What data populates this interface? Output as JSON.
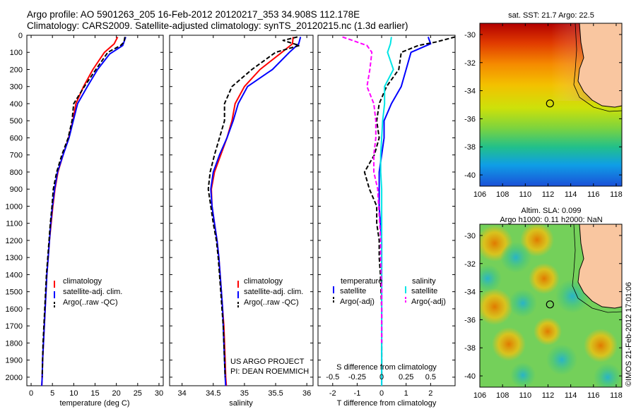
{
  "header": {
    "line1": "Argo profile: AO 5901263_205 16-Feb-2012 20120217_353 34.908S 112.178E",
    "line2": "Climatology: CARS2009. Satellite-adjusted climatology: synTS_20120215.nc (1.3d earlier)"
  },
  "colors": {
    "climatology": "#ff0000",
    "satellite": "#0000ff",
    "argo": "#000000",
    "sat_salinity": "#00e5e5",
    "argo_salinity_adj": "#ff00ff",
    "land": "#f9c6a0"
  },
  "panels": {
    "temperature": {
      "xlabel": "temperature (deg C)",
      "legend": [
        "climatology",
        "satellite-adj. clim.",
        "Argo(..raw -QC)"
      ]
    },
    "salinity": {
      "xlabel": "salinity",
      "legend": [
        "climatology",
        "satellite-adj. clim.",
        "Argo(..raw -QC)"
      ],
      "credit_line1": "US ARGO PROJECT",
      "credit_line2": "PI: DEAN ROEMMICH"
    },
    "difference": {
      "legend_temp_title": "temperature",
      "legend_sal_title": "salinity",
      "legend_temp": [
        "satellite",
        "Argo(-adj)"
      ],
      "legend_sal": [
        "satellite",
        "Argo(-adj)"
      ],
      "xlabel_top": "S difference from climatology",
      "xlabel_bottom": "T difference from climatology"
    }
  },
  "maps": {
    "sst_title": "sat. SST: 21.7 Argo: 22.5",
    "sla_title1": "Altim. SLA: 0.099",
    "sla_title2": "Argo h1000: 0.11 h2000: NaN",
    "stamp": "©IMOS 21-Feb-2012 17:01:06",
    "lon_ticks": [
      106,
      108,
      110,
      112,
      114,
      116,
      118
    ],
    "lat_ticks": [
      -30,
      -32,
      -34,
      -36,
      -38,
      -40
    ],
    "lon_range": [
      106,
      118.5
    ],
    "lat_range": [
      -29.2,
      -40.8
    ],
    "argo_position": {
      "lon": 112.178,
      "lat": -34.908
    }
  },
  "chart_data": [
    {
      "type": "line",
      "id": "temperature",
      "xlabel": "temperature (deg C)",
      "ylabel": "",
      "xlim": [
        -1,
        31
      ],
      "ylim": [
        2050,
        0
      ],
      "xticks": [
        0,
        5,
        10,
        15,
        20,
        25,
        30
      ],
      "yticks": [
        0,
        100,
        200,
        300,
        400,
        500,
        600,
        700,
        800,
        900,
        1000,
        1100,
        1200,
        1300,
        1400,
        1500,
        1600,
        1700,
        1800,
        1900,
        2000
      ],
      "series": [
        {
          "name": "climatology",
          "color": "#ff0000",
          "dash": "solid",
          "points": [
            [
              20.3,
              10
            ],
            [
              19.5,
              50
            ],
            [
              17.2,
              100
            ],
            [
              14.5,
              200
            ],
            [
              12.3,
              300
            ],
            [
              10.5,
              400
            ],
            [
              9.8,
              500
            ],
            [
              8.8,
              600
            ],
            [
              7.5,
              700
            ],
            [
              6.3,
              800
            ],
            [
              5.6,
              900
            ],
            [
              5.1,
              1000
            ],
            [
              4.7,
              1100
            ],
            [
              4.3,
              1200
            ],
            [
              4.0,
              1300
            ],
            [
              3.7,
              1400
            ],
            [
              3.5,
              1500
            ],
            [
              3.3,
              1600
            ],
            [
              3.1,
              1700
            ],
            [
              2.9,
              1800
            ],
            [
              2.7,
              1900
            ],
            [
              2.6,
              2000
            ],
            [
              2.5,
              2050
            ]
          ]
        },
        {
          "name": "satellite-adj. clim.",
          "color": "#0000ff",
          "dash": "solid",
          "points": [
            [
              22.2,
              10
            ],
            [
              21.5,
              60
            ],
            [
              18.4,
              110
            ],
            [
              15.6,
              200
            ],
            [
              13.2,
              300
            ],
            [
              10.9,
              400
            ],
            [
              9.9,
              500
            ],
            [
              8.9,
              600
            ],
            [
              7.5,
              700
            ],
            [
              6.2,
              800
            ],
            [
              5.5,
              900
            ],
            [
              5.0,
              1000
            ],
            [
              4.6,
              1100
            ],
            [
              4.3,
              1200
            ],
            [
              4.0,
              1300
            ],
            [
              3.7,
              1400
            ],
            [
              3.5,
              1500
            ],
            [
              3.3,
              1600
            ],
            [
              3.1,
              1700
            ],
            [
              2.9,
              1800
            ],
            [
              2.7,
              1900
            ],
            [
              2.6,
              2000
            ],
            [
              2.5,
              2050
            ]
          ]
        },
        {
          "name": "Argo(..raw -QC)",
          "color": "#000000",
          "dash": "dashed",
          "points": [
            [
              22.0,
              10
            ],
            [
              21.8,
              40
            ],
            [
              21.0,
              60
            ],
            [
              18.0,
              100
            ],
            [
              15.2,
              200
            ],
            [
              12.5,
              300
            ],
            [
              10.0,
              400
            ],
            [
              9.6,
              500
            ],
            [
              8.7,
              600
            ],
            [
              7.2,
              700
            ],
            [
              6.0,
              800
            ],
            [
              5.2,
              900
            ],
            [
              4.9,
              1000
            ],
            [
              4.5,
              1100
            ],
            [
              4.2,
              1200
            ],
            [
              3.9,
              1300
            ],
            [
              3.6,
              1400
            ],
            [
              3.4,
              1500
            ],
            [
              3.2,
              1600
            ],
            [
              3.0,
              1700
            ],
            [
              2.8,
              1800
            ],
            [
              2.7,
              1900
            ],
            [
              2.6,
              2000
            ]
          ]
        }
      ]
    },
    {
      "type": "line",
      "id": "salinity",
      "xlabel": "salinity",
      "ylabel": "",
      "xlim": [
        33.8,
        36.1
      ],
      "ylim": [
        2050,
        0
      ],
      "xticks": [
        34,
        34.5,
        35,
        35.5,
        36
      ],
      "series": [
        {
          "name": "climatology",
          "color": "#ff0000",
          "dash": "solid",
          "points": [
            [
              35.78,
              10
            ],
            [
              35.77,
              50
            ],
            [
              35.6,
              100
            ],
            [
              35.25,
              200
            ],
            [
              35.0,
              300
            ],
            [
              34.85,
              400
            ],
            [
              34.8,
              500
            ],
            [
              34.72,
              600
            ],
            [
              34.62,
              700
            ],
            [
              34.52,
              800
            ],
            [
              34.47,
              900
            ],
            [
              34.48,
              1000
            ],
            [
              34.52,
              1100
            ],
            [
              34.56,
              1200
            ],
            [
              34.59,
              1300
            ],
            [
              34.61,
              1400
            ],
            [
              34.63,
              1500
            ],
            [
              34.65,
              1600
            ],
            [
              34.67,
              1700
            ],
            [
              34.68,
              1800
            ],
            [
              34.69,
              1900
            ],
            [
              34.7,
              2000
            ],
            [
              34.71,
              2050
            ]
          ]
        },
        {
          "name": "satellite-adj. clim.",
          "color": "#0000ff",
          "dash": "solid",
          "points": [
            [
              35.9,
              10
            ],
            [
              35.87,
              50
            ],
            [
              35.72,
              100
            ],
            [
              35.45,
              200
            ],
            [
              35.05,
              300
            ],
            [
              34.9,
              400
            ],
            [
              34.82,
              500
            ],
            [
              34.72,
              600
            ],
            [
              34.6,
              700
            ],
            [
              34.5,
              800
            ],
            [
              34.46,
              900
            ],
            [
              34.48,
              1000
            ],
            [
              34.52,
              1100
            ],
            [
              34.56,
              1200
            ],
            [
              34.59,
              1300
            ],
            [
              34.61,
              1400
            ],
            [
              34.63,
              1500
            ],
            [
              34.65,
              1600
            ],
            [
              34.66,
              1700
            ],
            [
              34.67,
              1800
            ],
            [
              34.68,
              1900
            ],
            [
              34.69,
              2000
            ],
            [
              34.7,
              2050
            ]
          ]
        },
        {
          "name": "Argo(..raw -QC)",
          "color": "#000000",
          "dash": "dashed",
          "points": [
            [
              35.85,
              10
            ],
            [
              35.62,
              30
            ],
            [
              35.88,
              60
            ],
            [
              35.5,
              100
            ],
            [
              35.12,
              200
            ],
            [
              34.8,
              300
            ],
            [
              34.68,
              400
            ],
            [
              34.68,
              500
            ],
            [
              34.6,
              600
            ],
            [
              34.52,
              700
            ],
            [
              34.45,
              800
            ],
            [
              34.42,
              900
            ],
            [
              34.46,
              1000
            ],
            [
              34.5,
              1100
            ],
            [
              34.55,
              1200
            ],
            [
              34.58,
              1300
            ],
            [
              34.6,
              1400
            ],
            [
              34.62,
              1500
            ],
            [
              34.64,
              1600
            ],
            [
              34.66,
              1700
            ],
            [
              34.67,
              1800
            ],
            [
              34.68,
              1900
            ],
            [
              34.69,
              2000
            ]
          ]
        }
      ]
    },
    {
      "type": "line",
      "id": "difference",
      "xlabel": "T difference from climatology",
      "xlabel_top": "S difference from climatology",
      "xlim": [
        -2.6,
        3.0
      ],
      "ylim": [
        2050,
        0
      ],
      "xticks_T": [
        -2,
        -1,
        0,
        1,
        2
      ],
      "xticks_S": [
        -0.5,
        -0.25,
        0,
        0.25,
        0.5
      ],
      "series": [
        {
          "name": "temperature satellite",
          "color": "#0000ff",
          "dash": "solid",
          "units": "T",
          "points": [
            [
              1.9,
              10
            ],
            [
              2.0,
              50
            ],
            [
              1.2,
              100
            ],
            [
              1.0,
              200
            ],
            [
              0.8,
              300
            ],
            [
              0.4,
              400
            ],
            [
              0.1,
              500
            ],
            [
              0.1,
              600
            ],
            [
              0.0,
              700
            ],
            [
              -0.1,
              800
            ],
            [
              -0.1,
              900
            ],
            [
              -0.1,
              1000
            ],
            [
              -0.05,
              1100
            ],
            [
              0,
              1200
            ],
            [
              0,
              1400
            ],
            [
              0,
              1600
            ],
            [
              0,
              1800
            ],
            [
              0,
              2050
            ]
          ]
        },
        {
          "name": "temperature Argo(-adj)",
          "color": "#000000",
          "dash": "dashed",
          "units": "T",
          "points": [
            [
              3.0,
              10
            ],
            [
              2.2,
              40
            ],
            [
              1.5,
              60
            ],
            [
              0.8,
              100
            ],
            [
              0.7,
              200
            ],
            [
              0.2,
              300
            ],
            [
              -0.1,
              400
            ],
            [
              -0.2,
              500
            ],
            [
              -0.1,
              600
            ],
            [
              -0.3,
              700
            ],
            [
              -0.7,
              800
            ],
            [
              -0.5,
              900
            ],
            [
              -0.2,
              1000
            ],
            [
              -0.2,
              1100
            ],
            [
              -0.1,
              1200
            ],
            [
              -0.1,
              1300
            ],
            [
              -0.05,
              1400
            ],
            [
              0,
              1600
            ],
            [
              0,
              1800
            ],
            [
              0,
              2000
            ]
          ]
        },
        {
          "name": "salinity satellite",
          "color": "#00e5e5",
          "dash": "solid",
          "units": "S",
          "points": [
            [
              0.1,
              10
            ],
            [
              0.09,
              50
            ],
            [
              0.06,
              100
            ],
            [
              0.12,
              200
            ],
            [
              0.03,
              300
            ],
            [
              0.03,
              400
            ],
            [
              0.01,
              500
            ],
            [
              0,
              600
            ],
            [
              -0.01,
              700
            ],
            [
              -0.01,
              800
            ],
            [
              0,
              900
            ],
            [
              0,
              1000
            ],
            [
              0,
              1100
            ],
            [
              0,
              1200
            ],
            [
              0,
              1400
            ],
            [
              0,
              1600
            ],
            [
              0,
              1800
            ],
            [
              0,
              2050
            ]
          ]
        },
        {
          "name": "salinity Argo(-adj)",
          "color": "#ff00ff",
          "dash": "dashed",
          "units": "S",
          "points": [
            [
              -0.4,
              10
            ],
            [
              -0.15,
              60
            ],
            [
              -0.1,
              100
            ],
            [
              -0.12,
              200
            ],
            [
              -0.15,
              300
            ],
            [
              -0.08,
              400
            ],
            [
              -0.06,
              500
            ],
            [
              -0.06,
              600
            ],
            [
              -0.08,
              700
            ],
            [
              -0.08,
              800
            ],
            [
              -0.04,
              900
            ],
            [
              -0.03,
              1000
            ],
            [
              -0.02,
              1100
            ],
            [
              -0.01,
              1200
            ],
            [
              -0.01,
              1300
            ],
            [
              0,
              1500
            ],
            [
              0,
              1800
            ]
          ]
        }
      ]
    }
  ]
}
